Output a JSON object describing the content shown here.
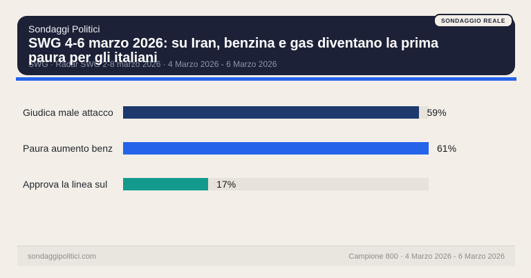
{
  "page": {
    "background": "#f3efe8"
  },
  "header": {
    "kicker": "Sondaggi Politici",
    "title": "SWG 4-6 marzo 2026: su Iran, benzina e gas diventano la prima paura per gli italiani",
    "subtitle": "SWG · Radar SWG 2-8 marzo 2026 · 4 Marzo 2026 - 6 Marzo 2026",
    "badge": "SONDAGGIO REALE",
    "card_background": "#1c2137",
    "accent_color": "#2563eb"
  },
  "chart_data": {
    "type": "bar",
    "orientation": "horizontal",
    "categories": [
      "Giudica male attacco",
      "Paura aumento benz",
      "Approva la linea sul"
    ],
    "values": [
      59,
      61,
      17
    ],
    "value_labels": [
      "59%",
      "61%",
      "17%"
    ],
    "bar_colors": [
      "#1e3a6d",
      "#2563ea",
      "#129a8c"
    ],
    "track_color": "#e7e3da",
    "xlim": [
      0,
      61
    ],
    "note": "bars scaled relative to max value (61%); grid off; values labeled at bar ends"
  },
  "footer": {
    "left": "sondaggipolitici.com",
    "right": "Campione 800 · 4 Marzo 2026 - 6 Marzo 2026"
  }
}
